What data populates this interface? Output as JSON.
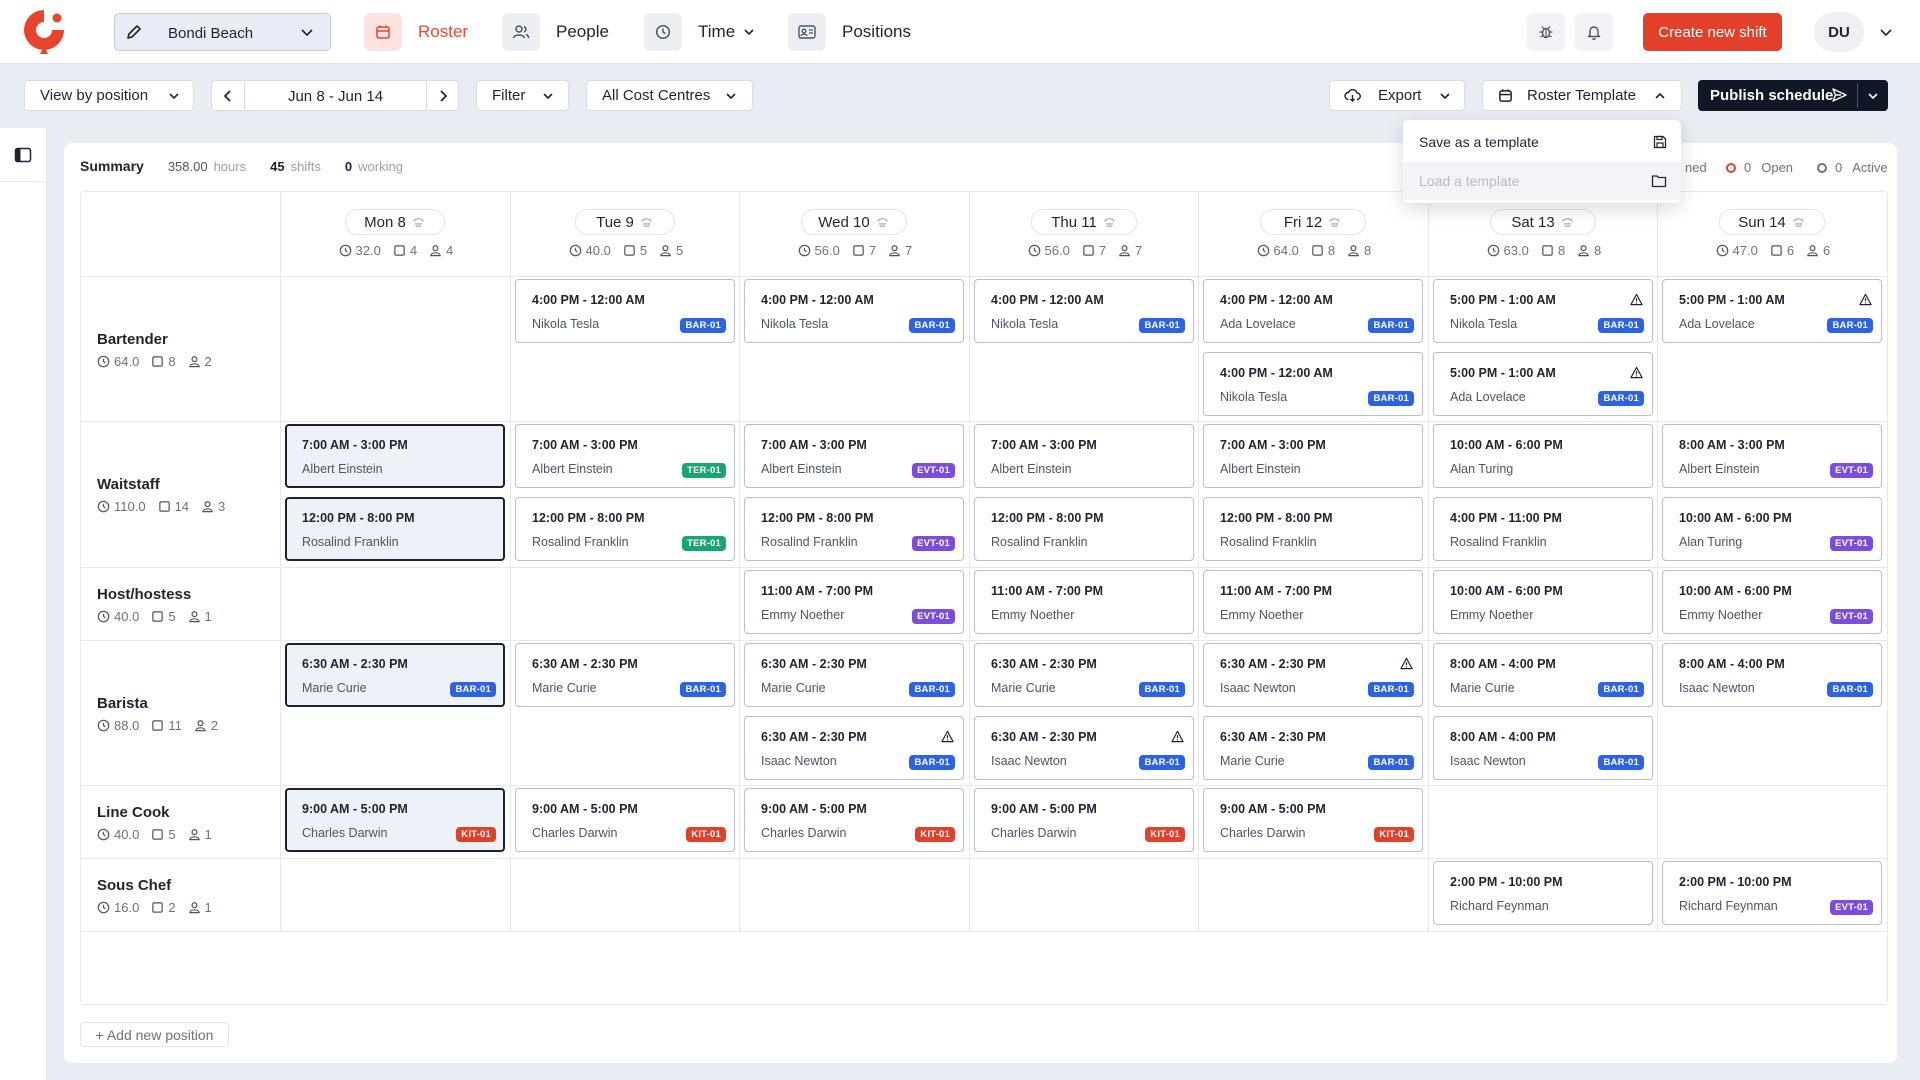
{
  "topnav": {
    "location": "Bondi Beach",
    "nav": [
      {
        "label": "Roster",
        "icon": "calendar-icon",
        "active": true
      },
      {
        "label": "People",
        "icon": "people-icon"
      },
      {
        "label": "Time",
        "icon": "clock-icon"
      },
      {
        "label": "Positions",
        "icon": "id-card-icon"
      }
    ],
    "create_label": "Create new shift",
    "user_initials": "DU"
  },
  "toolbar": {
    "view_by": "View by position",
    "date_range": "Jun 8 - Jun 14",
    "filter": "Filter",
    "cost_centres": "All Cost Centres",
    "export": "Export",
    "template": "Roster Template",
    "publish": "Publish schedule"
  },
  "template_menu": {
    "save": "Save as a template",
    "load": "Load a template"
  },
  "summary": {
    "title": "Summary",
    "hours_value": "358.00",
    "hours_unit": "hours",
    "shifts_value": "45",
    "shifts_unit": "shifts",
    "working_value": "0",
    "working_unit": "working",
    "partial_label": "ned",
    "open_value": "0",
    "open_label": "Open",
    "active_value": "0",
    "active_label": "Active"
  },
  "days": [
    {
      "label": "Mon 8",
      "hours": "32.0",
      "shifts": "4",
      "people": "4"
    },
    {
      "label": "Tue 9",
      "hours": "40.0",
      "shifts": "5",
      "people": "5"
    },
    {
      "label": "Wed 10",
      "hours": "56.0",
      "shifts": "7",
      "people": "7"
    },
    {
      "label": "Thu 11",
      "hours": "56.0",
      "shifts": "7",
      "people": "7"
    },
    {
      "label": "Fri 12",
      "hours": "64.0",
      "shifts": "8",
      "people": "8"
    },
    {
      "label": "Sat 13",
      "hours": "63.0",
      "shifts": "8",
      "people": "8"
    },
    {
      "label": "Sun 14",
      "hours": "47.0",
      "shifts": "6",
      "people": "6"
    }
  ],
  "positions": [
    {
      "name": "Bartender",
      "hours": "64.0",
      "shifts": "8",
      "people": "2"
    },
    {
      "name": "Waitstaff",
      "hours": "110.0",
      "shifts": "14",
      "people": "3"
    },
    {
      "name": "Host/hostess",
      "hours": "40.0",
      "shifts": "5",
      "people": "1"
    },
    {
      "name": "Barista",
      "hours": "88.0",
      "shifts": "11",
      "people": "2"
    },
    {
      "name": "Line Cook",
      "hours": "40.0",
      "shifts": "5",
      "people": "1"
    },
    {
      "name": "Sous Chef",
      "hours": "16.0",
      "shifts": "2",
      "people": "1"
    }
  ],
  "shifts": [
    {
      "day": 1,
      "pos": 0,
      "slot": 0,
      "time": "4:00 PM - 12:00 AM",
      "person": "Nikola Tesla",
      "badge": "BAR-01"
    },
    {
      "day": 2,
      "pos": 0,
      "slot": 0,
      "time": "4:00 PM - 12:00 AM",
      "person": "Nikola Tesla",
      "badge": "BAR-01"
    },
    {
      "day": 3,
      "pos": 0,
      "slot": 0,
      "time": "4:00 PM - 12:00 AM",
      "person": "Nikola Tesla",
      "badge": "BAR-01"
    },
    {
      "day": 4,
      "pos": 0,
      "slot": 0,
      "time": "4:00 PM - 12:00 AM",
      "person": "Ada Lovelace",
      "badge": "BAR-01"
    },
    {
      "day": 4,
      "pos": 0,
      "slot": 1,
      "time": "4:00 PM - 12:00 AM",
      "person": "Nikola Tesla",
      "badge": "BAR-01"
    },
    {
      "day": 5,
      "pos": 0,
      "slot": 0,
      "time": "5:00 PM - 1:00 AM",
      "person": "Nikola Tesla",
      "badge": "BAR-01",
      "warn": true
    },
    {
      "day": 5,
      "pos": 0,
      "slot": 1,
      "time": "5:00 PM - 1:00 AM",
      "person": "Ada Lovelace",
      "badge": "BAR-01",
      "warn": true
    },
    {
      "day": 6,
      "pos": 0,
      "slot": 0,
      "time": "5:00 PM - 1:00 AM",
      "person": "Ada Lovelace",
      "badge": "BAR-01",
      "warn": true
    },
    {
      "day": 0,
      "pos": 1,
      "slot": 0,
      "time": "7:00 AM - 3:00 PM",
      "person": "Albert Einstein",
      "selected": true
    },
    {
      "day": 0,
      "pos": 1,
      "slot": 1,
      "time": "12:00 PM - 8:00 PM",
      "person": "Rosalind Franklin",
      "selected": true
    },
    {
      "day": 1,
      "pos": 1,
      "slot": 0,
      "time": "7:00 AM - 3:00 PM",
      "person": "Albert Einstein",
      "badge": "TER-01"
    },
    {
      "day": 1,
      "pos": 1,
      "slot": 1,
      "time": "12:00 PM - 8:00 PM",
      "person": "Rosalind Franklin",
      "badge": "TER-01"
    },
    {
      "day": 2,
      "pos": 1,
      "slot": 0,
      "time": "7:00 AM - 3:00 PM",
      "person": "Albert Einstein",
      "badge": "EVT-01"
    },
    {
      "day": 2,
      "pos": 1,
      "slot": 1,
      "time": "12:00 PM - 8:00 PM",
      "person": "Rosalind Franklin",
      "badge": "EVT-01"
    },
    {
      "day": 3,
      "pos": 1,
      "slot": 0,
      "time": "7:00 AM - 3:00 PM",
      "person": "Albert Einstein"
    },
    {
      "day": 3,
      "pos": 1,
      "slot": 1,
      "time": "12:00 PM - 8:00 PM",
      "person": "Rosalind Franklin"
    },
    {
      "day": 4,
      "pos": 1,
      "slot": 0,
      "time": "7:00 AM - 3:00 PM",
      "person": "Albert Einstein"
    },
    {
      "day": 4,
      "pos": 1,
      "slot": 1,
      "time": "12:00 PM - 8:00 PM",
      "person": "Rosalind Franklin"
    },
    {
      "day": 5,
      "pos": 1,
      "slot": 0,
      "time": "10:00 AM - 6:00 PM",
      "person": "Alan Turing"
    },
    {
      "day": 5,
      "pos": 1,
      "slot": 1,
      "time": "4:00 PM - 11:00 PM",
      "person": "Rosalind Franklin"
    },
    {
      "day": 6,
      "pos": 1,
      "slot": 0,
      "time": "8:00 AM - 3:00 PM",
      "person": "Albert Einstein",
      "badge": "EVT-01"
    },
    {
      "day": 6,
      "pos": 1,
      "slot": 1,
      "time": "10:00 AM - 6:00 PM",
      "person": "Alan Turing",
      "badge": "EVT-01"
    },
    {
      "day": 2,
      "pos": 2,
      "slot": 0,
      "time": "11:00 AM - 7:00 PM",
      "person": "Emmy Noether",
      "badge": "EVT-01"
    },
    {
      "day": 3,
      "pos": 2,
      "slot": 0,
      "time": "11:00 AM - 7:00 PM",
      "person": "Emmy Noether"
    },
    {
      "day": 4,
      "pos": 2,
      "slot": 0,
      "time": "11:00 AM - 7:00 PM",
      "person": "Emmy Noether"
    },
    {
      "day": 5,
      "pos": 2,
      "slot": 0,
      "time": "10:00 AM - 6:00 PM",
      "person": "Emmy Noether"
    },
    {
      "day": 6,
      "pos": 2,
      "slot": 0,
      "time": "10:00 AM - 6:00 PM",
      "person": "Emmy Noether",
      "badge": "EVT-01"
    },
    {
      "day": 0,
      "pos": 3,
      "slot": 0,
      "time": "6:30 AM - 2:30 PM",
      "person": "Marie Curie",
      "badge": "BAR-01",
      "selected": true
    },
    {
      "day": 1,
      "pos": 3,
      "slot": 0,
      "time": "6:30 AM - 2:30 PM",
      "person": "Marie Curie",
      "badge": "BAR-01"
    },
    {
      "day": 2,
      "pos": 3,
      "slot": 0,
      "time": "6:30 AM - 2:30 PM",
      "person": "Marie Curie",
      "badge": "BAR-01"
    },
    {
      "day": 2,
      "pos": 3,
      "slot": 1,
      "time": "6:30 AM - 2:30 PM",
      "person": "Isaac Newton",
      "badge": "BAR-01",
      "warn": true
    },
    {
      "day": 3,
      "pos": 3,
      "slot": 0,
      "time": "6:30 AM - 2:30 PM",
      "person": "Marie Curie",
      "badge": "BAR-01"
    },
    {
      "day": 3,
      "pos": 3,
      "slot": 1,
      "time": "6:30 AM - 2:30 PM",
      "person": "Isaac Newton",
      "badge": "BAR-01",
      "warn": true
    },
    {
      "day": 4,
      "pos": 3,
      "slot": 0,
      "time": "6:30 AM - 2:30 PM",
      "person": "Isaac Newton",
      "badge": "BAR-01",
      "warn": true
    },
    {
      "day": 4,
      "pos": 3,
      "slot": 1,
      "time": "6:30 AM - 2:30 PM",
      "person": "Marie Curie",
      "badge": "BAR-01"
    },
    {
      "day": 5,
      "pos": 3,
      "slot": 0,
      "time": "8:00 AM - 4:00 PM",
      "person": "Marie Curie",
      "badge": "BAR-01"
    },
    {
      "day": 5,
      "pos": 3,
      "slot": 1,
      "time": "8:00 AM - 4:00 PM",
      "person": "Isaac Newton",
      "badge": "BAR-01"
    },
    {
      "day": 6,
      "pos": 3,
      "slot": 0,
      "time": "8:00 AM - 4:00 PM",
      "person": "Isaac Newton",
      "badge": "BAR-01"
    },
    {
      "day": 0,
      "pos": 4,
      "slot": 0,
      "time": "9:00 AM - 5:00 PM",
      "person": "Charles Darwin",
      "badge": "KIT-01",
      "selected": true
    },
    {
      "day": 1,
      "pos": 4,
      "slot": 0,
      "time": "9:00 AM - 5:00 PM",
      "person": "Charles Darwin",
      "badge": "KIT-01"
    },
    {
      "day": 2,
      "pos": 4,
      "slot": 0,
      "time": "9:00 AM - 5:00 PM",
      "person": "Charles Darwin",
      "badge": "KIT-01"
    },
    {
      "day": 3,
      "pos": 4,
      "slot": 0,
      "time": "9:00 AM - 5:00 PM",
      "person": "Charles Darwin",
      "badge": "KIT-01"
    },
    {
      "day": 4,
      "pos": 4,
      "slot": 0,
      "time": "9:00 AM - 5:00 PM",
      "person": "Charles Darwin",
      "badge": "KIT-01"
    },
    {
      "day": 5,
      "pos": 5,
      "slot": 0,
      "time": "2:00 PM - 10:00 PM",
      "person": "Richard Feynman"
    },
    {
      "day": 6,
      "pos": 5,
      "slot": 0,
      "time": "2:00 PM - 10:00 PM",
      "person": "Richard Feynman",
      "badge": "EVT-01"
    }
  ],
  "badge_colors": {
    "BAR": "#2d63e2",
    "TER": "#17a673",
    "EVT": "#7c4ddb",
    "KIT": "#e2402a"
  },
  "add_position": "+ Add new position"
}
